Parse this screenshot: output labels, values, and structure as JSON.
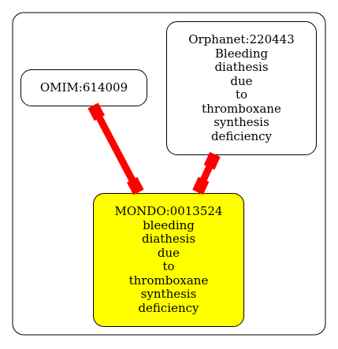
{
  "colors": {
    "edge": "#ff0000",
    "mondo_fill": "#ffff00",
    "default_fill": "#ffffff",
    "border": "#000000"
  },
  "nodes": {
    "omim": {
      "lines": [
        "OMIM:614009"
      ]
    },
    "orphanet": {
      "lines": [
        "Orphanet:220443",
        "Bleeding",
        "diathesis",
        "due",
        "to",
        "thromboxane",
        "synthesis",
        "deficiency"
      ]
    },
    "mondo": {
      "lines": [
        "MONDO:0013524",
        "bleeding",
        "diathesis",
        "due",
        "to",
        "thromboxane",
        "synthesis",
        "deficiency"
      ]
    }
  },
  "edges": [
    {
      "from": "omim",
      "to": "mondo"
    },
    {
      "from": "orphanet",
      "to": "mondo"
    }
  ]
}
